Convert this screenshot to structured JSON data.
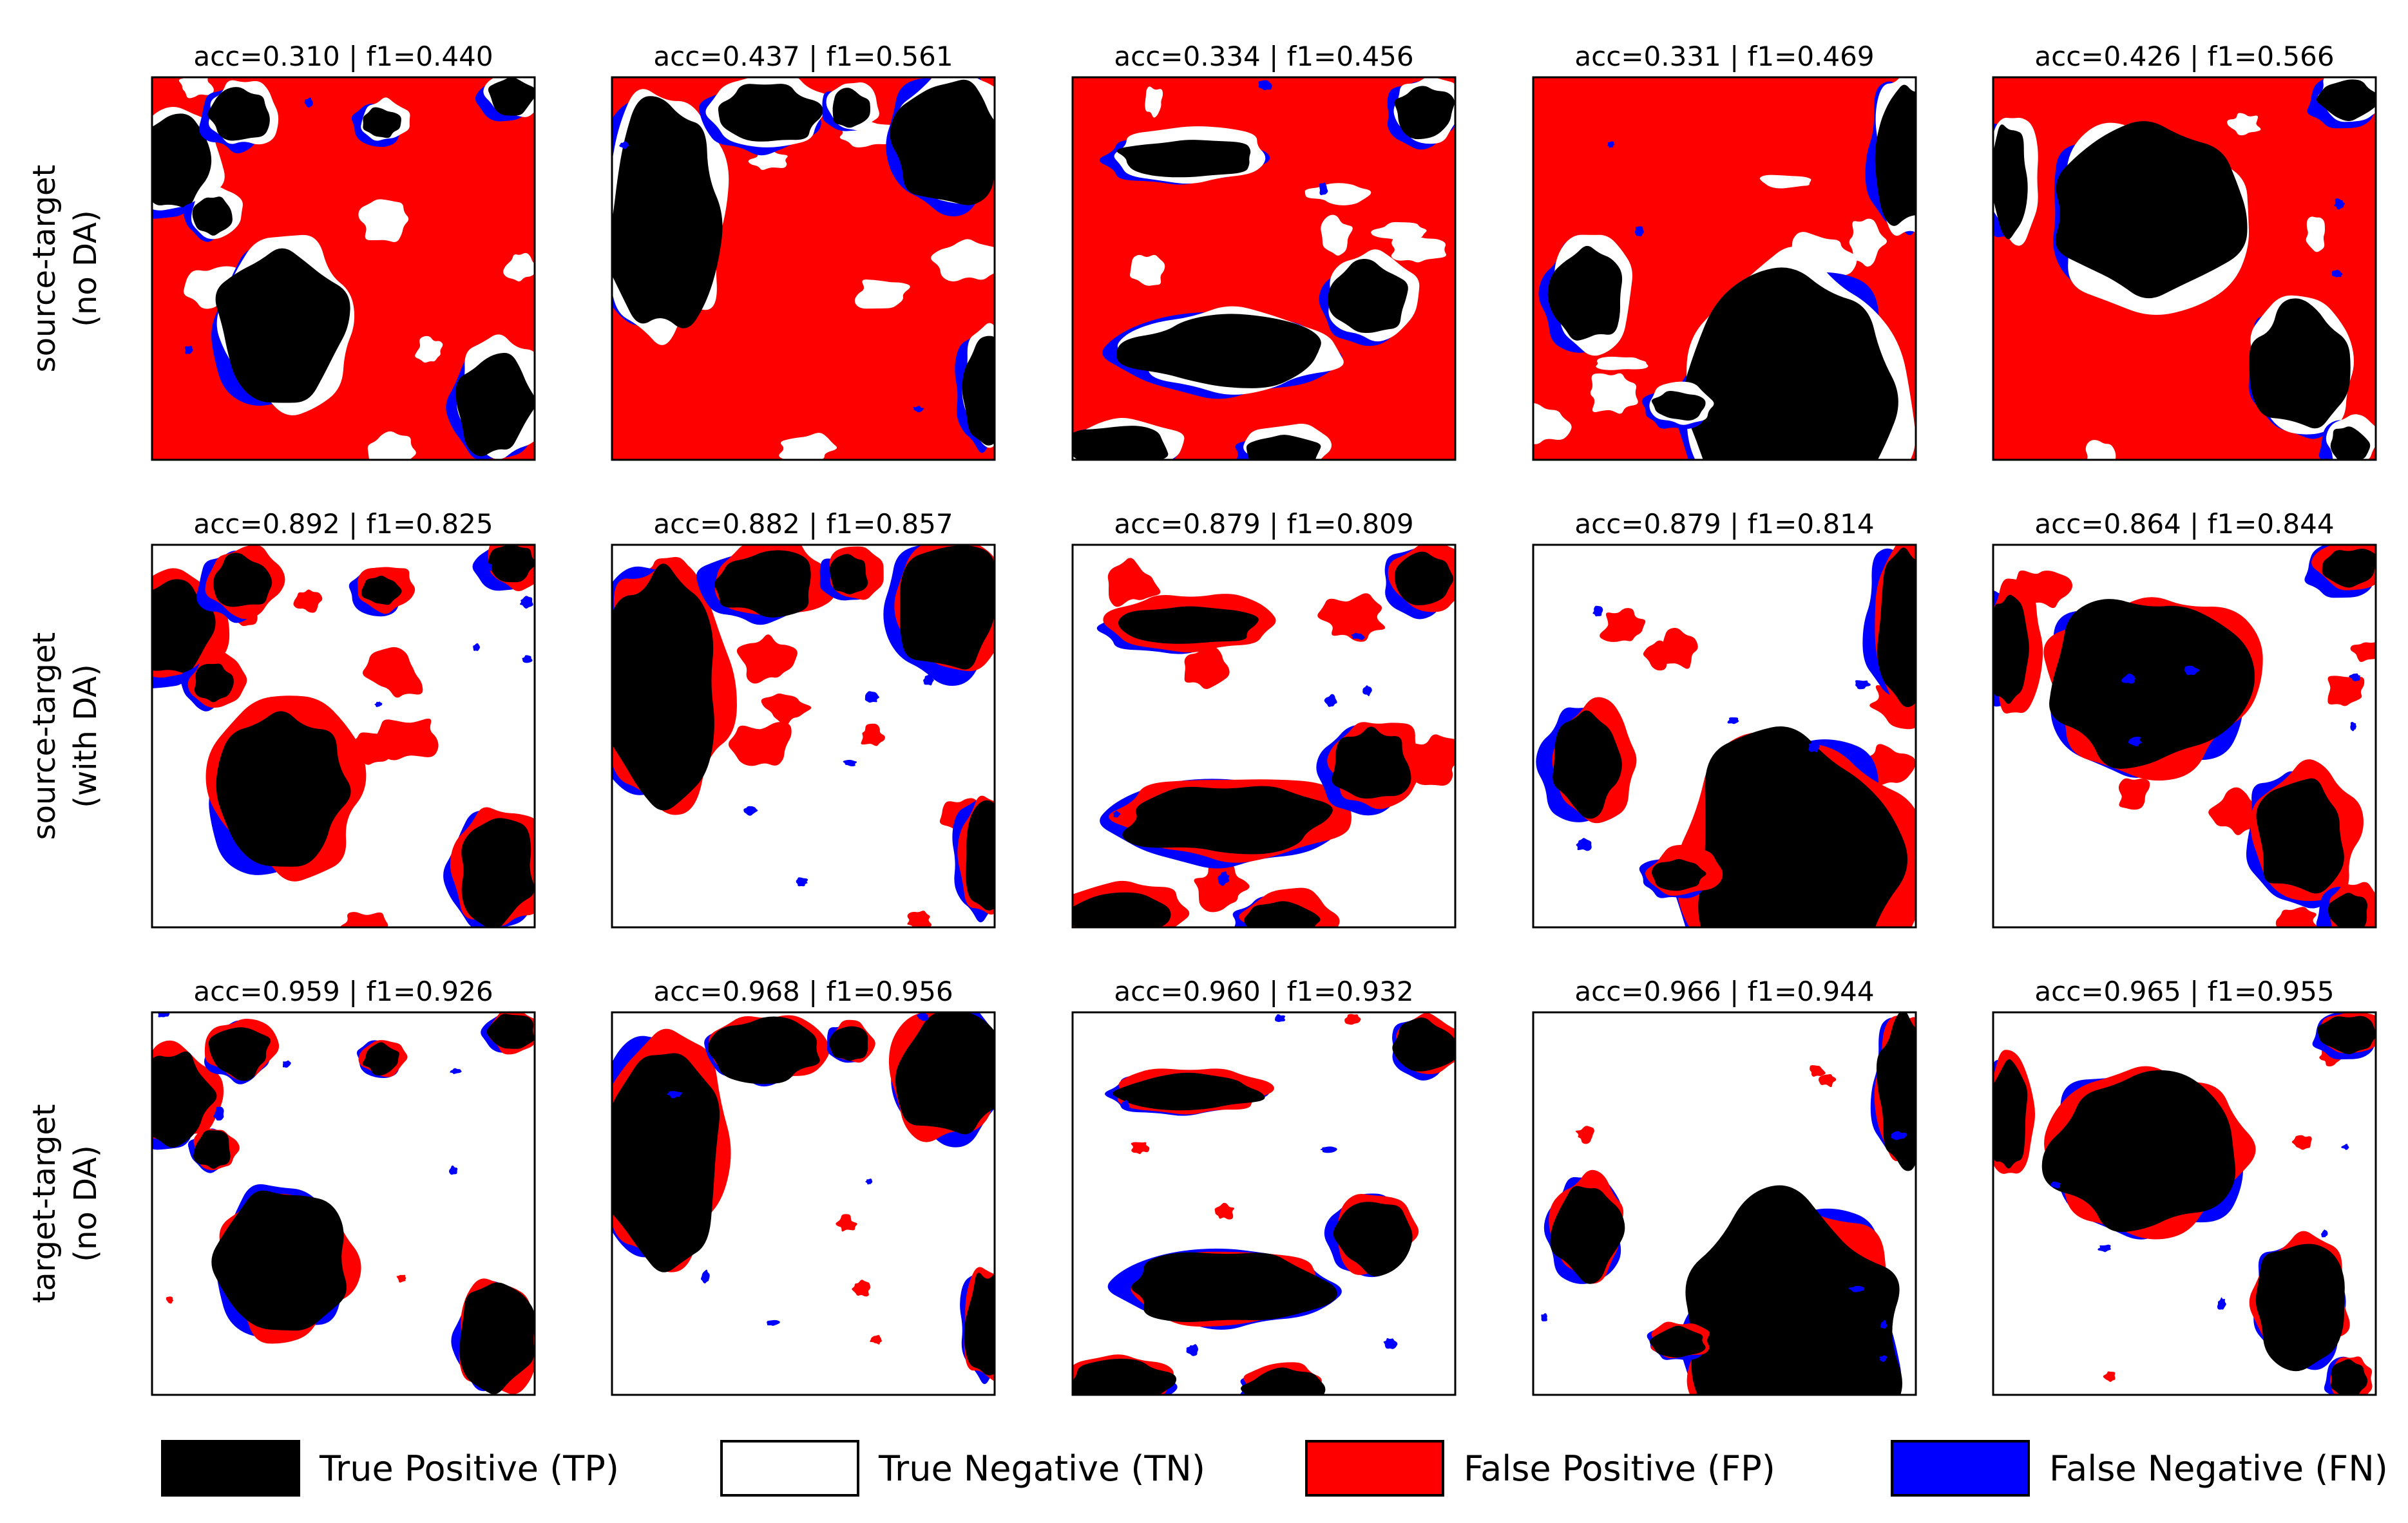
{
  "figure": {
    "rows": [
      {
        "label_line1": "source-target",
        "label_line2": "(no DA)",
        "panels": [
          {
            "title": "acc=0.310 | f1=0.440",
            "acc": 0.31,
            "f1": 0.44
          },
          {
            "title": "acc=0.437 | f1=0.561",
            "acc": 0.437,
            "f1": 0.561
          },
          {
            "title": "acc=0.334 | f1=0.456",
            "acc": 0.334,
            "f1": 0.456
          },
          {
            "title": "acc=0.331 | f1=0.469",
            "acc": 0.331,
            "f1": 0.469
          },
          {
            "title": "acc=0.426 | f1=0.566",
            "acc": 0.426,
            "f1": 0.566
          }
        ]
      },
      {
        "label_line1": "source-target",
        "label_line2": "(with DA)",
        "panels": [
          {
            "title": "acc=0.892 | f1=0.825",
            "acc": 0.892,
            "f1": 0.825
          },
          {
            "title": "acc=0.882 | f1=0.857",
            "acc": 0.882,
            "f1": 0.857
          },
          {
            "title": "acc=0.879 | f1=0.809",
            "acc": 0.879,
            "f1": 0.809
          },
          {
            "title": "acc=0.879 | f1=0.814",
            "acc": 0.879,
            "f1": 0.814
          },
          {
            "title": "acc=0.864 | f1=0.844",
            "acc": 0.864,
            "f1": 0.844
          }
        ]
      },
      {
        "label_line1": "target-target",
        "label_line2": "(no DA)",
        "panels": [
          {
            "title": "acc=0.959 | f1=0.926",
            "acc": 0.959,
            "f1": 0.926
          },
          {
            "title": "acc=0.968 | f1=0.956",
            "acc": 0.968,
            "f1": 0.956
          },
          {
            "title": "acc=0.960 | f1=0.932",
            "acc": 0.96,
            "f1": 0.932
          },
          {
            "title": "acc=0.966 | f1=0.944",
            "acc": 0.966,
            "f1": 0.944
          },
          {
            "title": "acc=0.965 | f1=0.955",
            "acc": 0.965,
            "f1": 0.955
          }
        ]
      }
    ]
  },
  "legend": {
    "items": [
      {
        "label": "True Positive (TP)",
        "color": "#000000"
      },
      {
        "label": "True Negative (TN)",
        "color": "#ffffff"
      },
      {
        "label": "False Positive (FP)",
        "color": "#ff0000"
      },
      {
        "label": "False Negative (FN)",
        "color": "#0000ff"
      }
    ]
  }
}
